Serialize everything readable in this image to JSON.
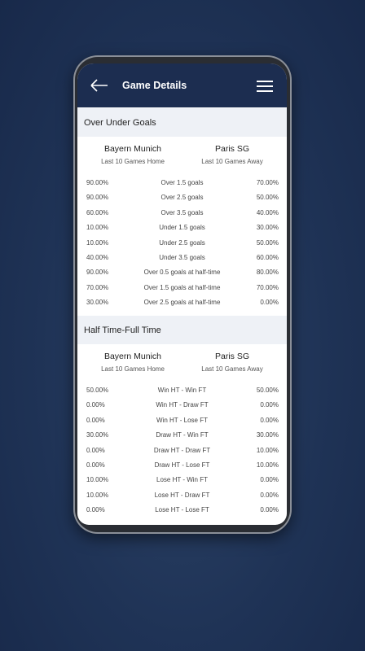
{
  "header": {
    "title": "Game Details"
  },
  "sections": [
    {
      "title": "Over Under Goals",
      "home_team": "Bayern Munich",
      "away_team": "Paris SG",
      "home_note": "Last 10 Games Home",
      "away_note": "Last 10 Games Away",
      "rows": [
        [
          "90.00%",
          "Over 1.5 goals",
          "70.00%"
        ],
        [
          "90.00%",
          "Over 2.5 goals",
          "50.00%"
        ],
        [
          "60.00%",
          "Over 3.5 goals",
          "40.00%"
        ],
        [
          "10.00%",
          "Under 1.5 goals",
          "30.00%"
        ],
        [
          "10.00%",
          "Under 2.5 goals",
          "50.00%"
        ],
        [
          "40.00%",
          "Under 3.5 goals",
          "60.00%"
        ],
        [
          "90.00%",
          "Over 0.5 goals at half-time",
          "80.00%"
        ],
        [
          "70.00%",
          "Over 1.5 goals at half-time",
          "70.00%"
        ],
        [
          "30.00%",
          "Over 2.5 goals at half-time",
          "0.00%"
        ]
      ]
    },
    {
      "title": "Half Time-Full Time",
      "home_team": "Bayern Munich",
      "away_team": "Paris SG",
      "home_note": "Last 10 Games Home",
      "away_note": "Last 10 Games Away",
      "rows": [
        [
          "50.00%",
          "Win HT - Win FT",
          "50.00%"
        ],
        [
          "0.00%",
          "Win HT - Draw FT",
          "0.00%"
        ],
        [
          "0.00%",
          "Win HT - Lose FT",
          "0.00%"
        ],
        [
          "30.00%",
          "Draw HT - Win FT",
          "30.00%"
        ],
        [
          "0.00%",
          "Draw HT - Draw FT",
          "10.00%"
        ],
        [
          "0.00%",
          "Draw HT - Lose FT",
          "10.00%"
        ],
        [
          "10.00%",
          "Lose HT - Win FT",
          "0.00%"
        ],
        [
          "10.00%",
          "Lose HT - Draw FT",
          "0.00%"
        ],
        [
          "0.00%",
          "Lose HT - Lose FT",
          "0.00%"
        ]
      ]
    }
  ]
}
